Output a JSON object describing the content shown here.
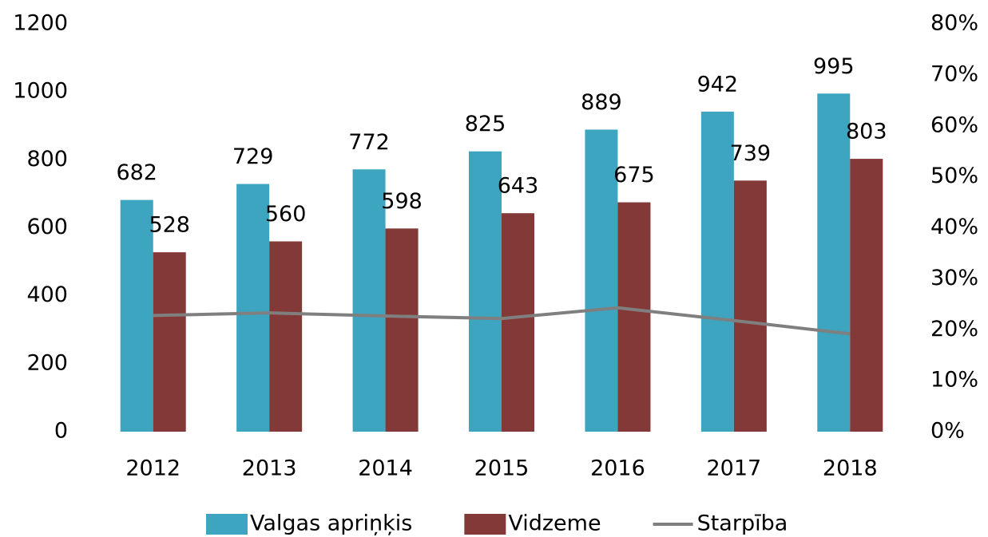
{
  "chart_data": {
    "type": "bar_line",
    "categories": [
      "2012",
      "2013",
      "2014",
      "2015",
      "2016",
      "2017",
      "2018"
    ],
    "series": [
      {
        "name": "Valgas apriņķis",
        "color": "#3ea5c1",
        "values": [
          682,
          729,
          772,
          825,
          889,
          942,
          995
        ]
      },
      {
        "name": "Vidzeme",
        "color": "#833937",
        "values": [
          528,
          560,
          598,
          643,
          675,
          739,
          803
        ]
      },
      {
        "name": "Starpība",
        "color": "#7f7f7f",
        "axis": "y2",
        "type": "line",
        "values": [
          22.8,
          23.3,
          22.7,
          22.2,
          24.3,
          21.8,
          19.2
        ],
        "value_labels": [
          "23%",
          "23%",
          "23%",
          "22%",
          "24%",
          "22%",
          "19%"
        ]
      }
    ],
    "ylim": [
      0,
      1200
    ],
    "yticks": [
      0,
      200,
      400,
      600,
      800,
      1000,
      1200
    ],
    "y2lim": [
      0,
      80
    ],
    "y2ticks": [
      {
        "value": 0,
        "label": "0%"
      },
      {
        "value": 10,
        "label": "10%"
      },
      {
        "value": 20,
        "label": "20%"
      },
      {
        "value": 30,
        "label": "30%"
      },
      {
        "value": 40,
        "label": "40%"
      },
      {
        "value": 50,
        "label": "50%"
      },
      {
        "value": 60,
        "label": "60%"
      },
      {
        "value": 70,
        "label": "70%"
      },
      {
        "value": 80,
        "label": "80%"
      }
    ],
    "legend": "bottom"
  }
}
